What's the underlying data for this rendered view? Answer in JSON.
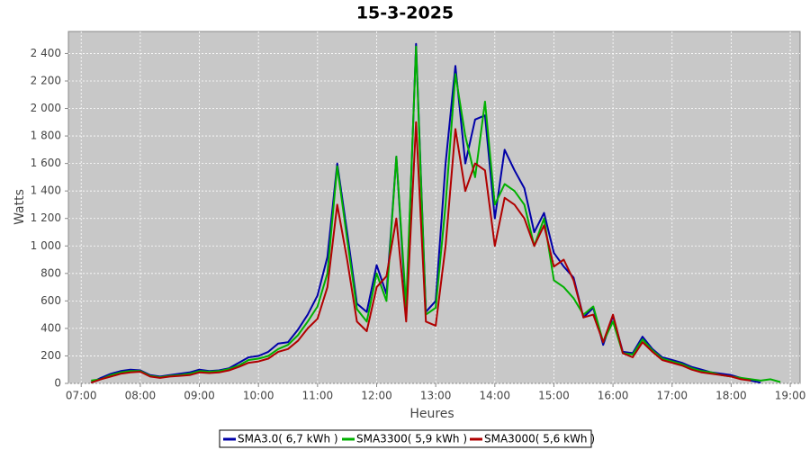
{
  "chart_data": {
    "type": "line",
    "title": "15-3-2025",
    "x_label": "Heures",
    "y_label": "Watts",
    "x": [
      "07:10",
      "07:20",
      "07:30",
      "07:40",
      "07:50",
      "08:00",
      "08:10",
      "08:20",
      "08:30",
      "08:40",
      "08:50",
      "09:00",
      "09:10",
      "09:20",
      "09:30",
      "09:40",
      "09:50",
      "10:00",
      "10:10",
      "10:20",
      "10:30",
      "10:40",
      "10:50",
      "11:00",
      "11:10",
      "11:20",
      "11:30",
      "11:40",
      "11:50",
      "12:00",
      "12:10",
      "12:20",
      "12:30",
      "12:40",
      "12:50",
      "13:00",
      "13:10",
      "13:20",
      "13:30",
      "13:40",
      "13:50",
      "14:00",
      "14:10",
      "14:20",
      "14:30",
      "14:40",
      "14:50",
      "15:00",
      "15:10",
      "15:20",
      "15:30",
      "15:40",
      "15:50",
      "16:00",
      "16:10",
      "16:20",
      "16:30",
      "16:40",
      "16:50",
      "17:00",
      "17:10",
      "17:20",
      "17:30",
      "17:40",
      "17:50",
      "18:00",
      "18:10",
      "18:20",
      "18:30",
      "18:40",
      "18:50"
    ],
    "series": [
      {
        "name": "SMA3.0( 6,7 kWh )",
        "color": "#0000a8",
        "values": [
          5,
          40,
          70,
          90,
          100,
          95,
          60,
          50,
          60,
          70,
          80,
          100,
          90,
          95,
          110,
          150,
          190,
          200,
          230,
          290,
          300,
          390,
          500,
          640,
          920,
          1600,
          1100,
          580,
          520,
          860,
          650,
          1650,
          500,
          2470,
          520,
          600,
          1600,
          2310,
          1600,
          1920,
          1950,
          1200,
          1700,
          1550,
          1420,
          1100,
          1240,
          950,
          850,
          770,
          480,
          550,
          280,
          490,
          230,
          220,
          340,
          250,
          190,
          170,
          150,
          120,
          100,
          80,
          70,
          60,
          40,
          20,
          5,
          null,
          null
        ]
      },
      {
        "name": "SMA3300( 5,9 kWh )",
        "color": "#00b000",
        "values": [
          20,
          30,
          60,
          80,
          90,
          90,
          55,
          45,
          55,
          60,
          70,
          90,
          85,
          90,
          105,
          130,
          170,
          180,
          200,
          250,
          280,
          350,
          450,
          560,
          800,
          1580,
          1050,
          540,
          450,
          800,
          600,
          1650,
          560,
          2450,
          500,
          550,
          1300,
          2250,
          1800,
          1500,
          2050,
          1300,
          1450,
          1400,
          1300,
          1000,
          1200,
          750,
          700,
          620,
          500,
          560,
          300,
          450,
          220,
          210,
          320,
          240,
          180,
          160,
          140,
          110,
          90,
          80,
          60,
          50,
          40,
          30,
          20,
          30,
          10
        ]
      },
      {
        "name": "SMA3000( 5,6 kWh )",
        "color": "#b00000",
        "values": [
          5,
          30,
          50,
          70,
          80,
          85,
          50,
          40,
          50,
          55,
          60,
          80,
          75,
          80,
          95,
          120,
          150,
          160,
          180,
          230,
          250,
          310,
          400,
          470,
          700,
          1300,
          900,
          450,
          380,
          700,
          780,
          1200,
          450,
          1900,
          450,
          420,
          1000,
          1850,
          1400,
          1600,
          1550,
          1000,
          1350,
          1300,
          1200,
          1000,
          1150,
          850,
          900,
          750,
          480,
          500,
          300,
          500,
          220,
          190,
          300,
          230,
          170,
          150,
          130,
          100,
          80,
          70,
          60,
          50,
          30,
          20,
          null,
          null,
          null
        ]
      }
    ],
    "xlim": [
      "06:47",
      "19:10"
    ],
    "xticks": [
      "07:00",
      "08:00",
      "09:00",
      "10:00",
      "11:00",
      "12:00",
      "13:00",
      "14:00",
      "15:00",
      "16:00",
      "17:00",
      "18:00",
      "19:00"
    ],
    "ylim": [
      0,
      2560
    ],
    "yticks": [
      0,
      200,
      400,
      600,
      800,
      {
        "value": 1000,
        "label": "1 000"
      },
      {
        "value": 1200,
        "label": "1 200"
      },
      {
        "value": 1400,
        "label": "1 400"
      },
      {
        "value": 1600,
        "label": "1 600"
      },
      {
        "value": 1800,
        "label": "1 800"
      },
      {
        "value": 2000,
        "label": "2 000"
      },
      {
        "value": 2200,
        "label": "2 200"
      },
      {
        "value": 2400,
        "label": "2 400"
      }
    ],
    "grid": true,
    "legend": "bottom"
  }
}
